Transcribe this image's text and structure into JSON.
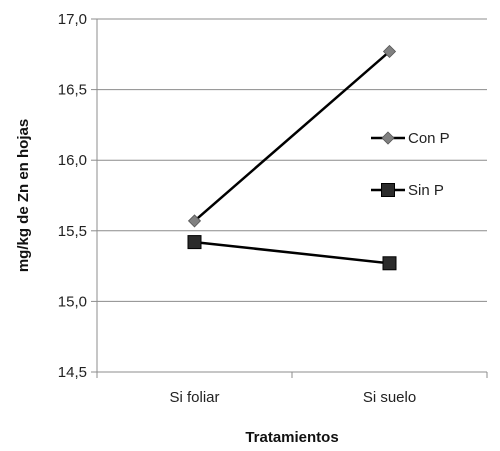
{
  "chart_data": {
    "type": "line",
    "title": "",
    "xlabel": "Tratamientos",
    "ylabel": "mg/kg de Zn en hojas",
    "categories": [
      "Si foliar",
      "Si suelo"
    ],
    "ylim": [
      14.5,
      17.0
    ],
    "yticks": [
      14.5,
      15.0,
      15.5,
      16.0,
      16.5,
      17.0
    ],
    "ytick_labels": [
      "14,5",
      "15,0",
      "15,5",
      "16,0",
      "16,5",
      "17,0"
    ],
    "grid": true,
    "legend_position": "right",
    "series": [
      {
        "name": "Con P",
        "values": [
          15.57,
          16.77
        ],
        "marker": "diamond",
        "color": "#808080",
        "line_color": "#000000"
      },
      {
        "name": "Sin P",
        "values": [
          15.42,
          15.27
        ],
        "marker": "square",
        "color": "#2b2b2b",
        "line_color": "#000000"
      }
    ]
  }
}
